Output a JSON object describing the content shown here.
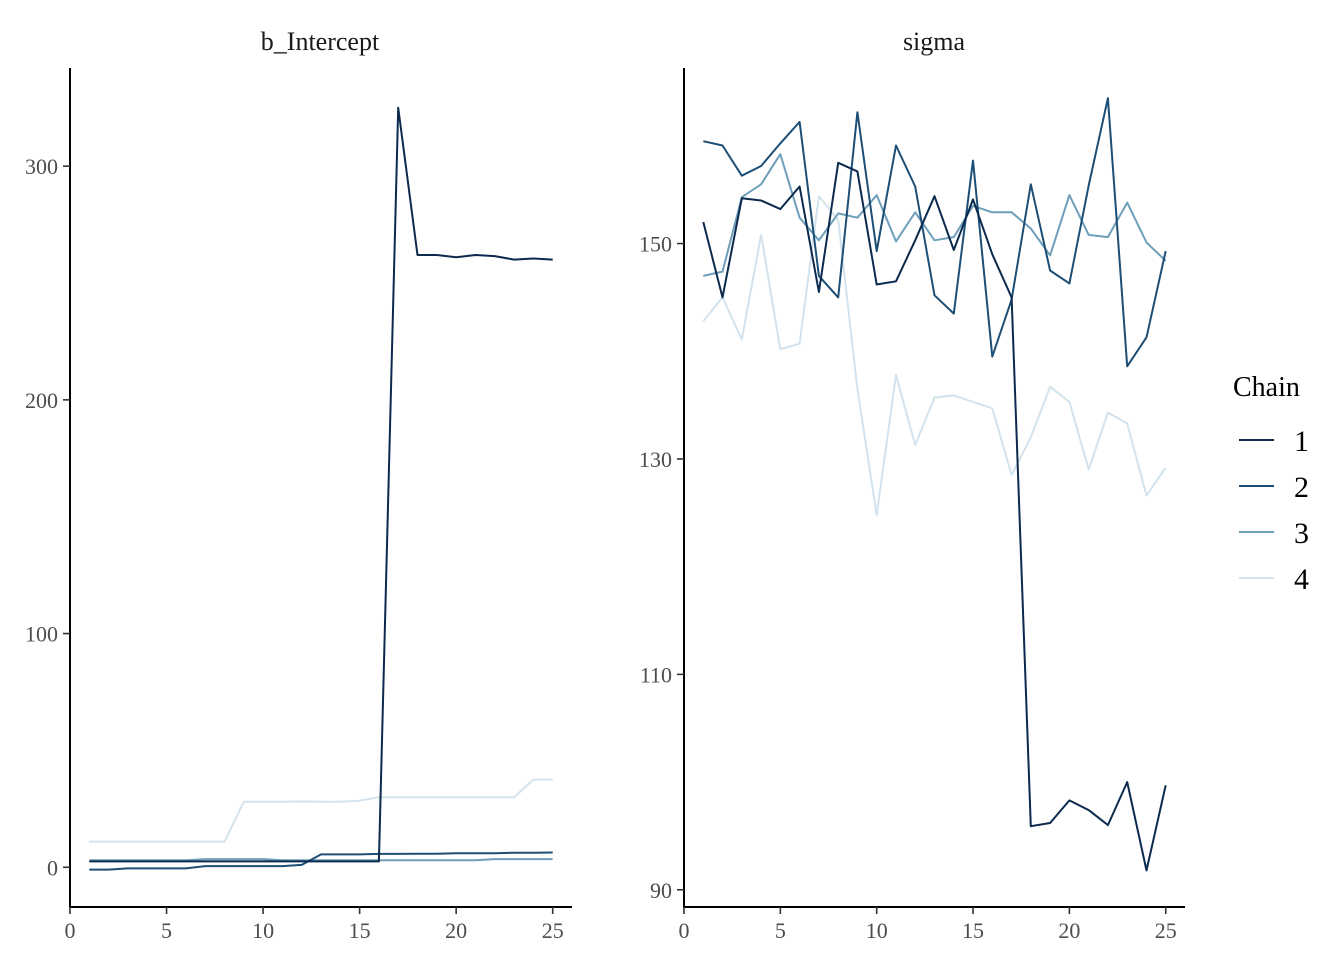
{
  "chart_data": {
    "type": "line",
    "legend": {
      "title": "Chain",
      "placement": "right"
    },
    "chains": [
      {
        "name": "1",
        "color": "#0b2a4e"
      },
      {
        "name": "2",
        "color": "#1d4e75"
      },
      {
        "name": "3",
        "color": "#6e9fba"
      },
      {
        "name": "4",
        "color": "#d3e3ee"
      }
    ],
    "panels": [
      {
        "title": "b_Intercept",
        "x": [
          1,
          2,
          3,
          4,
          5,
          6,
          7,
          8,
          9,
          10,
          11,
          12,
          13,
          14,
          15,
          16,
          17,
          18,
          19,
          20,
          21,
          22,
          23,
          24,
          25
        ],
        "xlim": [
          0,
          26
        ],
        "xticks": [
          0,
          5,
          10,
          15,
          20,
          25
        ],
        "ylim": [
          -17,
          342
        ],
        "yticks": [
          0,
          100,
          200,
          300
        ],
        "series": [
          {
            "values": [
              2.5,
              2.5,
              2.5,
              2.5,
              2.5,
              2.5,
              2.5,
              2.5,
              2.5,
              2.5,
              2.5,
              2.5,
              2.5,
              2.5,
              2.5,
              2.5,
              325,
              262,
              262,
              261,
              262,
              261.5,
              260,
              260.5,
              260
            ]
          },
          {
            "values": [
              -1,
              -1,
              -0.5,
              -0.5,
              -0.5,
              -0.5,
              0.5,
              0.5,
              0.5,
              0.5,
              0.5,
              1,
              5.5,
              5.5,
              5.5,
              5.7,
              5.7,
              5.8,
              5.8,
              6,
              6,
              6,
              6.2,
              6.2,
              6.3
            ]
          },
          {
            "values": [
              3,
              3,
              3,
              3,
              3,
              3,
              3.5,
              3.5,
              3.5,
              3.5,
              3,
              3,
              3,
              3,
              3,
              3,
              3,
              3,
              3,
              3,
              3,
              3.5,
              3.5,
              3.5,
              3.5
            ]
          },
          {
            "values": [
              11,
              11,
              11,
              11,
              11,
              11,
              11,
              11,
              28,
              28,
              28,
              28.2,
              28,
              28.1,
              28.5,
              30,
              30,
              30,
              30,
              30,
              30,
              30,
              30,
              37.5,
              37.5
            ]
          }
        ]
      },
      {
        "title": "sigma",
        "x": [
          1,
          2,
          3,
          4,
          5,
          6,
          7,
          8,
          9,
          10,
          11,
          12,
          13,
          14,
          15,
          16,
          17,
          18,
          19,
          20,
          21,
          22,
          23,
          24,
          25
        ],
        "xlim": [
          0,
          26
        ],
        "xticks": [
          0,
          5,
          10,
          15,
          20,
          25
        ],
        "ylim": [
          88.4,
          166.3
        ],
        "yticks": [
          90,
          110,
          130,
          150
        ],
        "series": [
          {
            "values": [
              152,
              145,
              154.2,
              154,
              153.2,
              155.3,
              145.5,
              157.5,
              156.7,
              146.2,
              146.5,
              150.3,
              154.4,
              149.4,
              154.1,
              149,
              145,
              95.9,
              96.2,
              98.3,
              97.4,
              96,
              100,
              91.8,
              99.7
            ]
          },
          {
            "values": [
              159.5,
              159.1,
              156.3,
              157.2,
              159.3,
              161.3,
              147,
              145,
              162.2,
              149.3,
              159.1,
              155.3,
              145.2,
              143.5,
              157.7,
              139.5,
              144.8,
              155.5,
              147.5,
              146.3,
              155.4,
              163.5,
              138.6,
              141.3,
              149.3
            ]
          },
          {
            "values": [
              147,
              147.4,
              154.3,
              155.5,
              158.3,
              152.4,
              150.3,
              152.8,
              152.4,
              154.5,
              150.2,
              152.9,
              150.3,
              150.6,
              153.5,
              152.9,
              152.9,
              151.4,
              148.9,
              154.5,
              150.8,
              150.6,
              153.8,
              150.1,
              148.4
            ]
          },
          {
            "values": [
              142.8,
              145,
              141.1,
              150.8,
              140.2,
              140.7,
              154.4,
              152.2,
              136.5,
              124.8,
              137.8,
              131.3,
              135.7,
              135.9,
              135.3,
              134.7,
              128.5,
              132,
              136.7,
              135.3,
              129,
              134.3,
              133.3,
              126.6,
              129.2
            ]
          }
        ]
      }
    ]
  }
}
